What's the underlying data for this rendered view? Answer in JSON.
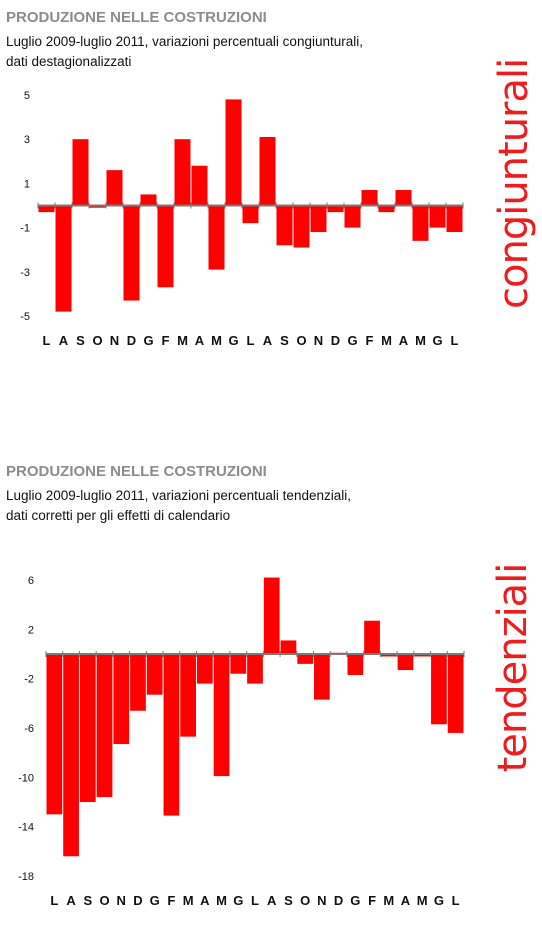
{
  "chart_data": [
    {
      "type": "bar",
      "title": "PRODUZIONE NELLE COSTRUZIONI",
      "subtitle_line1": "Luglio 2009-luglio 2011, variazioni percentuali congiunturali,",
      "subtitle_line2": "dati destagionalizzati",
      "side_label": "congiunturali",
      "categories": [
        "L",
        "A",
        "S",
        "O",
        "N",
        "D",
        "G",
        "F",
        "M",
        "A",
        "M",
        "G",
        "L",
        "A",
        "S",
        "O",
        "N",
        "D",
        "G",
        "F",
        "M",
        "A",
        "M",
        "G",
        "L"
      ],
      "values": [
        -0.3,
        -4.8,
        3.0,
        -0.1,
        1.6,
        -4.3,
        0.5,
        -3.7,
        3.0,
        1.8,
        -2.9,
        4.8,
        -0.8,
        3.1,
        -1.8,
        -1.9,
        -1.2,
        -0.3,
        -1.0,
        0.7,
        -0.3,
        0.7,
        -1.6,
        -1.0,
        -1.2
      ],
      "ylim": [
        -5,
        5
      ],
      "yticks": [
        5,
        3,
        1,
        -1,
        -3,
        -5
      ],
      "color": "#ff0000"
    },
    {
      "type": "bar",
      "title": "PRODUZIONE NELLE COSTRUZIONI",
      "subtitle_line1": "Luglio 2009-luglio 2011, variazioni percentuali tendenziali,",
      "subtitle_line2": "dati corretti per gli effetti di calendario",
      "side_label": "tendenziali",
      "categories": [
        "L",
        "A",
        "S",
        "O",
        "N",
        "D",
        "G",
        "F",
        "M",
        "A",
        "M",
        "G",
        "L",
        "A",
        "S",
        "O",
        "N",
        "D",
        "G",
        "F",
        "M",
        "A",
        "M",
        "G",
        "L"
      ],
      "values": [
        -13.0,
        -16.4,
        -12.0,
        -11.6,
        -7.3,
        -4.6,
        -3.3,
        -13.1,
        -6.7,
        -2.4,
        -9.9,
        -1.6,
        -2.4,
        6.2,
        1.1,
        -0.8,
        -3.7,
        0.1,
        -1.7,
        2.7,
        -0.2,
        -1.3,
        -0.2,
        -5.7,
        -6.4
      ],
      "ylim": [
        -18,
        6
      ],
      "yticks": [
        6,
        2,
        -2,
        -6,
        -10,
        -14,
        -18
      ],
      "color": "#ff0000"
    }
  ]
}
